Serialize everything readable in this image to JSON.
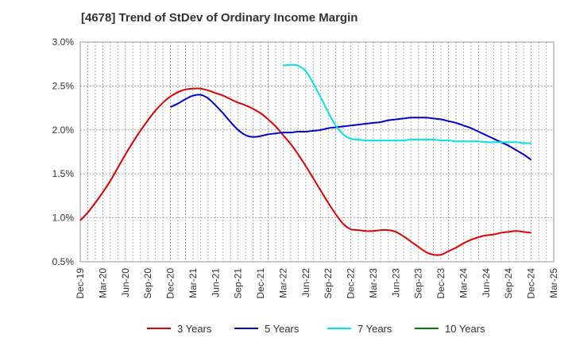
{
  "chart_data": {
    "type": "line",
    "title": "[4678]  Trend of StDev of Ordinary Income Margin",
    "xlabel": "",
    "ylabel": "",
    "x_ticks": [
      "Dec-19",
      "Mar-20",
      "Jun-20",
      "Sep-20",
      "Dec-20",
      "Mar-21",
      "Jun-21",
      "Sep-21",
      "Dec-21",
      "Mar-22",
      "Jun-22",
      "Sep-22",
      "Dec-22",
      "Mar-23",
      "Jun-23",
      "Sep-23",
      "Dec-23",
      "Mar-24",
      "Jun-24",
      "Sep-24",
      "Dec-24",
      "Mar-25"
    ],
    "y_ticks": [
      "0.5%",
      "1.0%",
      "1.5%",
      "2.0%",
      "2.5%",
      "3.0%"
    ],
    "ylim": [
      0.5,
      3.0
    ],
    "y_unit": "%",
    "grid": true,
    "legend_position": "bottom",
    "series": [
      {
        "name": "3 Years",
        "color": "#e00000",
        "x": [
          "Dec-19",
          "Jan-20",
          "Feb-20",
          "Mar-20",
          "Apr-20",
          "May-20",
          "Jun-20",
          "Jul-20",
          "Aug-20",
          "Sep-20",
          "Oct-20",
          "Nov-20",
          "Dec-20",
          "Jan-21",
          "Feb-21",
          "Mar-21",
          "Apr-21",
          "May-21",
          "Jun-21",
          "Jul-21",
          "Aug-21",
          "Sep-21",
          "Oct-21",
          "Nov-21",
          "Dec-21",
          "Jan-22",
          "Feb-22",
          "Mar-22",
          "Apr-22",
          "May-22",
          "Jun-22",
          "Jul-22",
          "Aug-22",
          "Sep-22",
          "Oct-22",
          "Nov-22",
          "Dec-22",
          "Jan-23",
          "Feb-23",
          "Mar-23",
          "Apr-23",
          "May-23",
          "Jun-23",
          "Jul-23",
          "Aug-23",
          "Sep-23",
          "Oct-23",
          "Nov-23",
          "Dec-23",
          "Jan-24",
          "Feb-24",
          "Mar-24",
          "Apr-24",
          "May-24",
          "Jun-24",
          "Jul-24",
          "Aug-24",
          "Sep-24",
          "Oct-24",
          "Nov-24",
          "Dec-24"
        ],
        "values": [
          0.97,
          1.06,
          1.17,
          1.29,
          1.42,
          1.57,
          1.72,
          1.86,
          1.99,
          2.11,
          2.22,
          2.31,
          2.38,
          2.43,
          2.46,
          2.47,
          2.47,
          2.45,
          2.42,
          2.39,
          2.35,
          2.31,
          2.28,
          2.24,
          2.19,
          2.12,
          2.04,
          1.94,
          1.84,
          1.72,
          1.59,
          1.45,
          1.31,
          1.17,
          1.04,
          0.93,
          0.87,
          0.86,
          0.85,
          0.85,
          0.86,
          0.86,
          0.84,
          0.79,
          0.73,
          0.67,
          0.61,
          0.58,
          0.58,
          0.62,
          0.66,
          0.71,
          0.75,
          0.78,
          0.8,
          0.81,
          0.83,
          0.84,
          0.85,
          0.84,
          0.83
        ]
      },
      {
        "name": "5 Years",
        "color": "#0000cc",
        "x": [
          "Dec-20",
          "Jan-21",
          "Feb-21",
          "Mar-21",
          "Apr-21",
          "May-21",
          "Jun-21",
          "Jul-21",
          "Aug-21",
          "Sep-21",
          "Oct-21",
          "Nov-21",
          "Dec-21",
          "Jan-22",
          "Feb-22",
          "Mar-22",
          "Apr-22",
          "May-22",
          "Jun-22",
          "Jul-22",
          "Aug-22",
          "Sep-22",
          "Oct-22",
          "Nov-22",
          "Dec-22",
          "Jan-23",
          "Feb-23",
          "Mar-23",
          "Apr-23",
          "May-23",
          "Jun-23",
          "Jul-23",
          "Aug-23",
          "Sep-23",
          "Oct-23",
          "Nov-23",
          "Dec-23",
          "Jan-24",
          "Feb-24",
          "Mar-24",
          "Apr-24",
          "May-24",
          "Jun-24",
          "Jul-24",
          "Aug-24",
          "Sep-24",
          "Oct-24",
          "Nov-24",
          "Dec-24"
        ],
        "values": [
          2.26,
          2.3,
          2.35,
          2.39,
          2.4,
          2.36,
          2.28,
          2.19,
          2.09,
          2.0,
          1.94,
          1.92,
          1.93,
          1.95,
          1.96,
          1.97,
          1.97,
          1.98,
          1.98,
          1.99,
          2.0,
          2.02,
          2.03,
          2.04,
          2.05,
          2.06,
          2.07,
          2.08,
          2.09,
          2.11,
          2.12,
          2.13,
          2.14,
          2.14,
          2.14,
          2.13,
          2.12,
          2.1,
          2.08,
          2.05,
          2.02,
          1.98,
          1.94,
          1.9,
          1.86,
          1.82,
          1.77,
          1.72,
          1.66
        ]
      },
      {
        "name": "7 Years",
        "color": "#00e5e5",
        "x": [
          "Mar-22",
          "Apr-22",
          "May-22",
          "Jun-22",
          "Jul-22",
          "Aug-22",
          "Sep-22",
          "Oct-22",
          "Nov-22",
          "Dec-22",
          "Jan-23",
          "Feb-23",
          "Mar-23",
          "Apr-23",
          "May-23",
          "Jun-23",
          "Jul-23",
          "Aug-23",
          "Sep-23",
          "Oct-23",
          "Nov-23",
          "Dec-23",
          "Jan-24",
          "Feb-24",
          "Mar-24",
          "Apr-24",
          "May-24",
          "Jun-24",
          "Jul-24",
          "Aug-24",
          "Sep-24",
          "Oct-24",
          "Nov-24",
          "Dec-24"
        ],
        "values": [
          2.73,
          2.74,
          2.73,
          2.67,
          2.53,
          2.37,
          2.2,
          2.05,
          1.95,
          1.9,
          1.89,
          1.88,
          1.88,
          1.88,
          1.88,
          1.88,
          1.88,
          1.89,
          1.89,
          1.89,
          1.89,
          1.88,
          1.88,
          1.87,
          1.87,
          1.87,
          1.87,
          1.86,
          1.86,
          1.86,
          1.86,
          1.86,
          1.85,
          1.85
        ]
      },
      {
        "name": "10 Years",
        "color": "#008000",
        "x": [],
        "values": []
      }
    ]
  }
}
